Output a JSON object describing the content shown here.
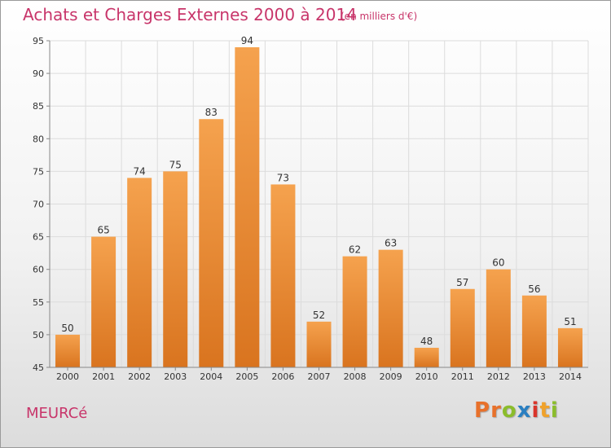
{
  "header": {
    "title": "Achats et Charges Externes 2000 à 2014",
    "subtitle": "(en milliers d'€)"
  },
  "footer": {
    "place": "MEURCé",
    "logo": [
      "P",
      "r",
      "o",
      "x",
      "i",
      "t",
      "i"
    ],
    "logo_colors": [
      "#e8712b",
      "#e8712b",
      "#8bbd2c",
      "#2a7fc1",
      "#d9352b",
      "#f0a22b",
      "#8bbd2c"
    ]
  },
  "colors": {
    "bar_top": "#f5a24e",
    "bar_bottom": "#d9741f",
    "grid": "#dcdcdc",
    "axis": "#888888",
    "accent": "#c8356a"
  },
  "chart_data": {
    "type": "bar",
    "title": "Achats et Charges Externes 2000 à 2014",
    "subtitle": "(en milliers d'€)",
    "categories": [
      "2000",
      "2001",
      "2002",
      "2003",
      "2004",
      "2005",
      "2006",
      "2007",
      "2008",
      "2009",
      "2010",
      "2011",
      "2012",
      "2013",
      "2014"
    ],
    "values": [
      50,
      65,
      74,
      75,
      83,
      94,
      73,
      52,
      62,
      63,
      48,
      57,
      60,
      56,
      51
    ],
    "ylim": [
      45,
      95
    ],
    "yticks": [
      45,
      50,
      55,
      60,
      65,
      70,
      75,
      80,
      85,
      90,
      95
    ],
    "grid": true,
    "data_labels": true
  }
}
